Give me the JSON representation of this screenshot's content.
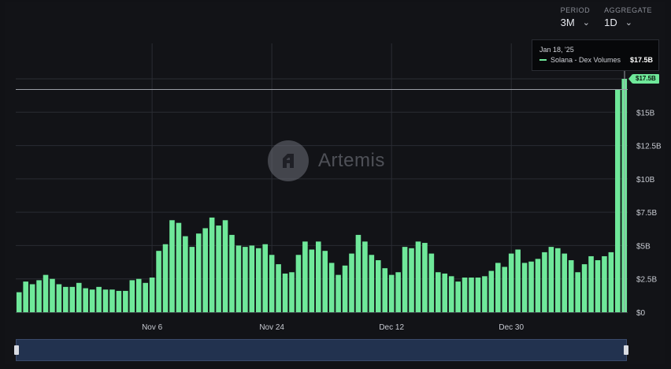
{
  "controls": {
    "period": {
      "label": "PERIOD",
      "value": "3M"
    },
    "aggregate": {
      "label": "AGGREGATE",
      "value": "1D"
    }
  },
  "tooltip": {
    "date": "Jan 18, '25",
    "series": "Solana - Dex Volumes",
    "value": "$17.5B"
  },
  "value_tag": "$17.5B",
  "watermark": "Artemis",
  "colors": {
    "bar": "#6fe89a",
    "grid": "#2a2c33",
    "background": "#121317",
    "navigator": "#22324f"
  },
  "chart_data": {
    "type": "bar",
    "series": [
      {
        "values": [
          1.5,
          2.3,
          2.1,
          2.4,
          2.8,
          2.5,
          2.1,
          1.9,
          1.9,
          2.2,
          1.8,
          1.7,
          1.9,
          1.7,
          1.7,
          1.6,
          1.6,
          2.4,
          2.5,
          2.2,
          2.6,
          4.6,
          5.1,
          6.9,
          6.7,
          5.7,
          4.9,
          5.9,
          6.3,
          7.1,
          6.5,
          6.9,
          5.8,
          5.0,
          4.9,
          5.0,
          4.8,
          5.1,
          4.3,
          3.6,
          2.9,
          3.0,
          4.3,
          5.3,
          4.7,
          5.3,
          4.6,
          3.7,
          2.8,
          3.5,
          4.4,
          5.8,
          5.3,
          4.3,
          3.9,
          3.3,
          2.8,
          3.0,
          4.9,
          4.8,
          5.3,
          5.2,
          4.4,
          3.0,
          2.9,
          2.7,
          2.3,
          2.6,
          2.6,
          2.6,
          2.7,
          3.1,
          3.7,
          3.4,
          4.4,
          4.7,
          3.7,
          3.8,
          4.0,
          4.5,
          4.9,
          4.8,
          4.4,
          3.9,
          3.0,
          3.6,
          4.2,
          3.9,
          4.2,
          4.5,
          16.7,
          17.5
        ]
      }
    ],
    "x_ticks": [
      "Nov 6",
      "Nov 24",
      "Dec 12",
      "Dec 30"
    ],
    "x_tick_index": [
      20,
      38,
      56,
      74
    ],
    "y_ticks": [
      "$0",
      "$2.5B",
      "$5B",
      "$7.5B",
      "$10B",
      "$12.5B",
      "$15B",
      "$17.5B"
    ],
    "y_tick_values": [
      0,
      2.5,
      5,
      7.5,
      10,
      12.5,
      15,
      17.5
    ],
    "ylim": [
      0,
      17.5
    ],
    "reference_line": 16.7,
    "grid": true
  }
}
